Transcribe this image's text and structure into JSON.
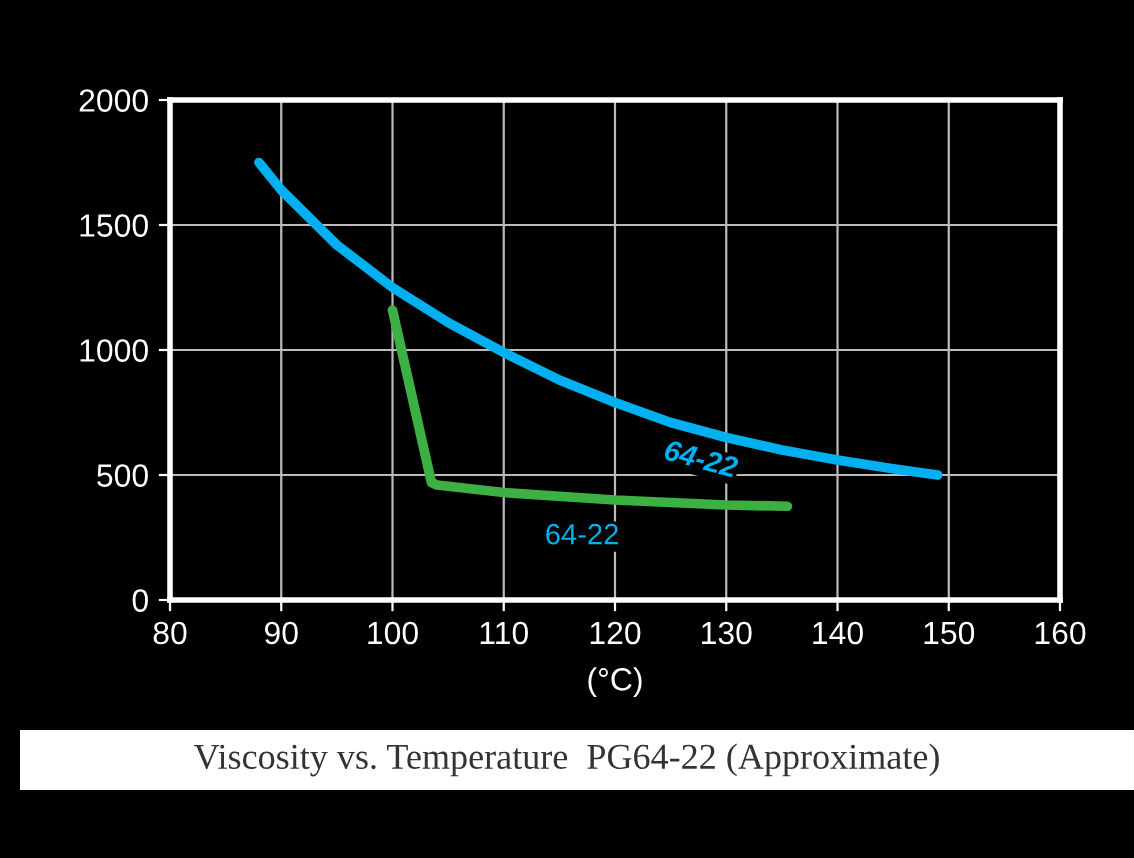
{
  "chart_data": {
    "type": "line",
    "title": "Viscosity vs. Temperature  PG64-22 (Approximate)",
    "xlabel": "(°C)",
    "xlim": [
      80,
      160
    ],
    "xticks": [
      80,
      90,
      100,
      110,
      120,
      130,
      140,
      150,
      160
    ],
    "ylim": [
      0,
      2000
    ],
    "yticks": [
      0,
      500,
      1000,
      1500,
      2000
    ],
    "grid": true,
    "marker": "none",
    "line_style": "solid",
    "series": [
      {
        "name": "64-22",
        "color": "#00b0f0",
        "x": [
          88,
          90,
          95,
          100,
          105,
          110,
          115,
          120,
          125,
          130,
          135,
          140,
          145,
          149
        ],
        "values": [
          1750,
          1640,
          1420,
          1250,
          1110,
          990,
          880,
          790,
          710,
          650,
          600,
          560,
          525,
          500
        ]
      },
      {
        "name": "64-22",
        "color": "#3cb043",
        "x": [
          100,
          103.5,
          104,
          110,
          120,
          130,
          135.5
        ],
        "values": [
          1160,
          470,
          460,
          430,
          400,
          380,
          375
        ]
      }
    ]
  }
}
